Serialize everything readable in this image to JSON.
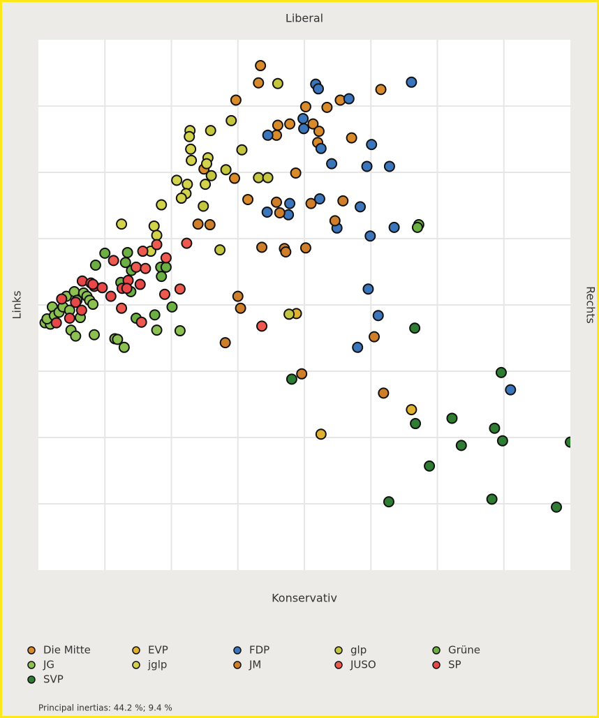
{
  "chart_data": {
    "type": "scatter",
    "axis_labels": {
      "top": "Liberal",
      "bottom": "Konservativ",
      "left": "Links",
      "right": "Rechts"
    },
    "xlim": [
      0,
      8
    ],
    "ylim": [
      0,
      8
    ],
    "xticks": [
      1,
      2,
      3,
      4,
      5,
      6,
      7
    ],
    "yticks": [
      1,
      2,
      3,
      4,
      5,
      6,
      7
    ],
    "grid": true,
    "footnote": "Principal inertias: 44.2 %; 9.4 %",
    "series": [
      {
        "name": "Die Mitte",
        "color": "#d98a2b",
        "x": [
          3.34,
          3.31,
          2.97,
          5.15,
          4.54,
          4.02,
          4.34,
          3.6,
          3.78,
          4.13,
          4.22,
          3.58,
          4.71,
          4.2,
          2.49,
          2.95,
          3.87,
          3.15
        ],
        "y": [
          7.61,
          7.35,
          7.09,
          7.25,
          7.09,
          6.99,
          6.98,
          6.71,
          6.73,
          6.73,
          6.62,
          6.56,
          6.52,
          6.45,
          6.05,
          5.91,
          5.99,
          5.59
        ]
      },
      {
        "name": "EVP",
        "color": "#e0b030",
        "x": [
          5.61,
          4.25,
          3.88
        ],
        "y": [
          2.42,
          2.05,
          3.87
        ]
      },
      {
        "name": "FDP",
        "color": "#3b76bd",
        "x": [
          5.61,
          4.17,
          4.21,
          4.67,
          3.98,
          3.99,
          3.45,
          4.25,
          5.01,
          4.41,
          4.94,
          5.28,
          4.23,
          3.78,
          3.44,
          3.76,
          4.84,
          4.49,
          4.99,
          5.35,
          4.96,
          5.11,
          4.8,
          7.1
        ],
        "y": [
          7.36,
          7.33,
          7.26,
          7.11,
          6.81,
          6.66,
          6.56,
          6.36,
          6.42,
          6.13,
          6.09,
          6.09,
          5.6,
          5.53,
          5.4,
          5.36,
          5.48,
          5.16,
          5.04,
          5.17,
          4.24,
          3.84,
          3.36,
          2.72
        ]
      },
      {
        "name": "glp",
        "color": "#c5c640",
        "x": [
          3.6,
          2.9,
          2.59,
          3.06,
          2.82,
          3.31,
          3.45,
          2.73,
          3.77,
          2.48,
          2.6
        ],
        "y": [
          7.34,
          6.78,
          6.63,
          6.34,
          6.04,
          5.92,
          5.92,
          4.83,
          3.86,
          5.49,
          5.95
        ]
      },
      {
        "name": "Grüne",
        "color": "#6cb043",
        "x": [
          5.72,
          5.7,
          1.0,
          0.86,
          1.34,
          1.31,
          1.84,
          1.92,
          1.4,
          1.85,
          1.24,
          1.39,
          2.01,
          1.47,
          1.75
        ],
        "y": [
          5.21,
          5.17,
          4.78,
          4.6,
          4.79,
          4.64,
          4.57,
          4.57,
          4.52,
          4.43,
          4.34,
          4.2,
          3.97,
          3.8,
          3.85
        ]
      },
      {
        "name": "JG",
        "color": "#8cc152",
        "x": [
          0.49,
          0.56,
          0.84,
          1.15,
          1.19,
          1.29,
          1.78,
          2.13,
          0.1,
          0.18,
          0.13,
          0.21,
          0.24,
          0.31,
          0.37,
          0.42,
          0.47,
          0.54,
          0.58,
          0.63,
          0.68,
          0.73,
          0.77,
          0.82
        ],
        "y": [
          3.62,
          3.53,
          3.55,
          3.49,
          3.48,
          3.36,
          3.62,
          3.61,
          3.73,
          3.71,
          3.79,
          3.97,
          3.84,
          3.89,
          3.97,
          4.13,
          3.92,
          4.2,
          4.07,
          3.81,
          4.18,
          4.13,
          4.07,
          4.01
        ]
      },
      {
        "name": "jglp",
        "color": "#d2d34a",
        "x": [
          2.28,
          2.27,
          2.29,
          2.55,
          2.3,
          2.08,
          2.24,
          2.51,
          2.22,
          2.15,
          1.85,
          1.25,
          1.74,
          1.78,
          1.69,
          2.53
        ],
        "y": [
          6.63,
          6.54,
          6.35,
          6.22,
          6.18,
          5.88,
          5.82,
          5.82,
          5.68,
          5.61,
          5.51,
          5.22,
          5.19,
          5.05,
          4.81,
          6.13
        ]
      },
      {
        "name": "JM",
        "color": "#cf7f2a",
        "x": [
          3.58,
          4.1,
          4.58,
          3.63,
          2.4,
          2.58,
          4.46,
          3.36,
          3.7,
          3.72,
          4.02,
          3.0,
          3.04,
          5.05,
          2.81,
          3.96,
          5.19
        ],
        "y": [
          5.55,
          5.53,
          5.57,
          5.39,
          5.22,
          5.21,
          5.27,
          4.87,
          4.85,
          4.8,
          4.86,
          4.13,
          3.95,
          3.52,
          3.43,
          2.96,
          2.67
        ]
      },
      {
        "name": "JUSO",
        "color": "#ee5a50",
        "x": [
          1.13,
          1.57,
          1.78,
          1.92,
          2.23,
          1.47,
          1.61,
          1.9,
          2.13,
          1.55,
          3.36,
          1.25
        ],
        "y": [
          4.67,
          4.81,
          4.91,
          4.71,
          4.93,
          4.57,
          4.55,
          4.16,
          4.24,
          3.74,
          3.68,
          3.95
        ]
      },
      {
        "name": "SP",
        "color": "#e84848",
        "x": [
          0.84,
          0.96,
          1.09,
          1.35,
          1.26,
          1.53,
          1.33,
          0.66,
          0.79,
          0.56,
          0.65,
          0.47,
          0.27,
          0.35,
          0.82
        ],
        "y": [
          4.28,
          4.26,
          4.13,
          4.37,
          4.25,
          4.31,
          4.25,
          4.36,
          4.33,
          4.04,
          3.92,
          3.8,
          3.73,
          4.09,
          4.31
        ]
      },
      {
        "name": "SVP",
        "color": "#2e7d32",
        "x": [
          6.96,
          5.66,
          5.67,
          6.22,
          6.86,
          6.98,
          6.36,
          8.0,
          5.88,
          5.27,
          6.82,
          7.79,
          3.81
        ],
        "y": [
          2.98,
          3.65,
          2.21,
          2.29,
          2.14,
          1.95,
          1.88,
          1.93,
          1.57,
          1.03,
          1.07,
          0.95,
          2.88
        ]
      }
    ]
  }
}
